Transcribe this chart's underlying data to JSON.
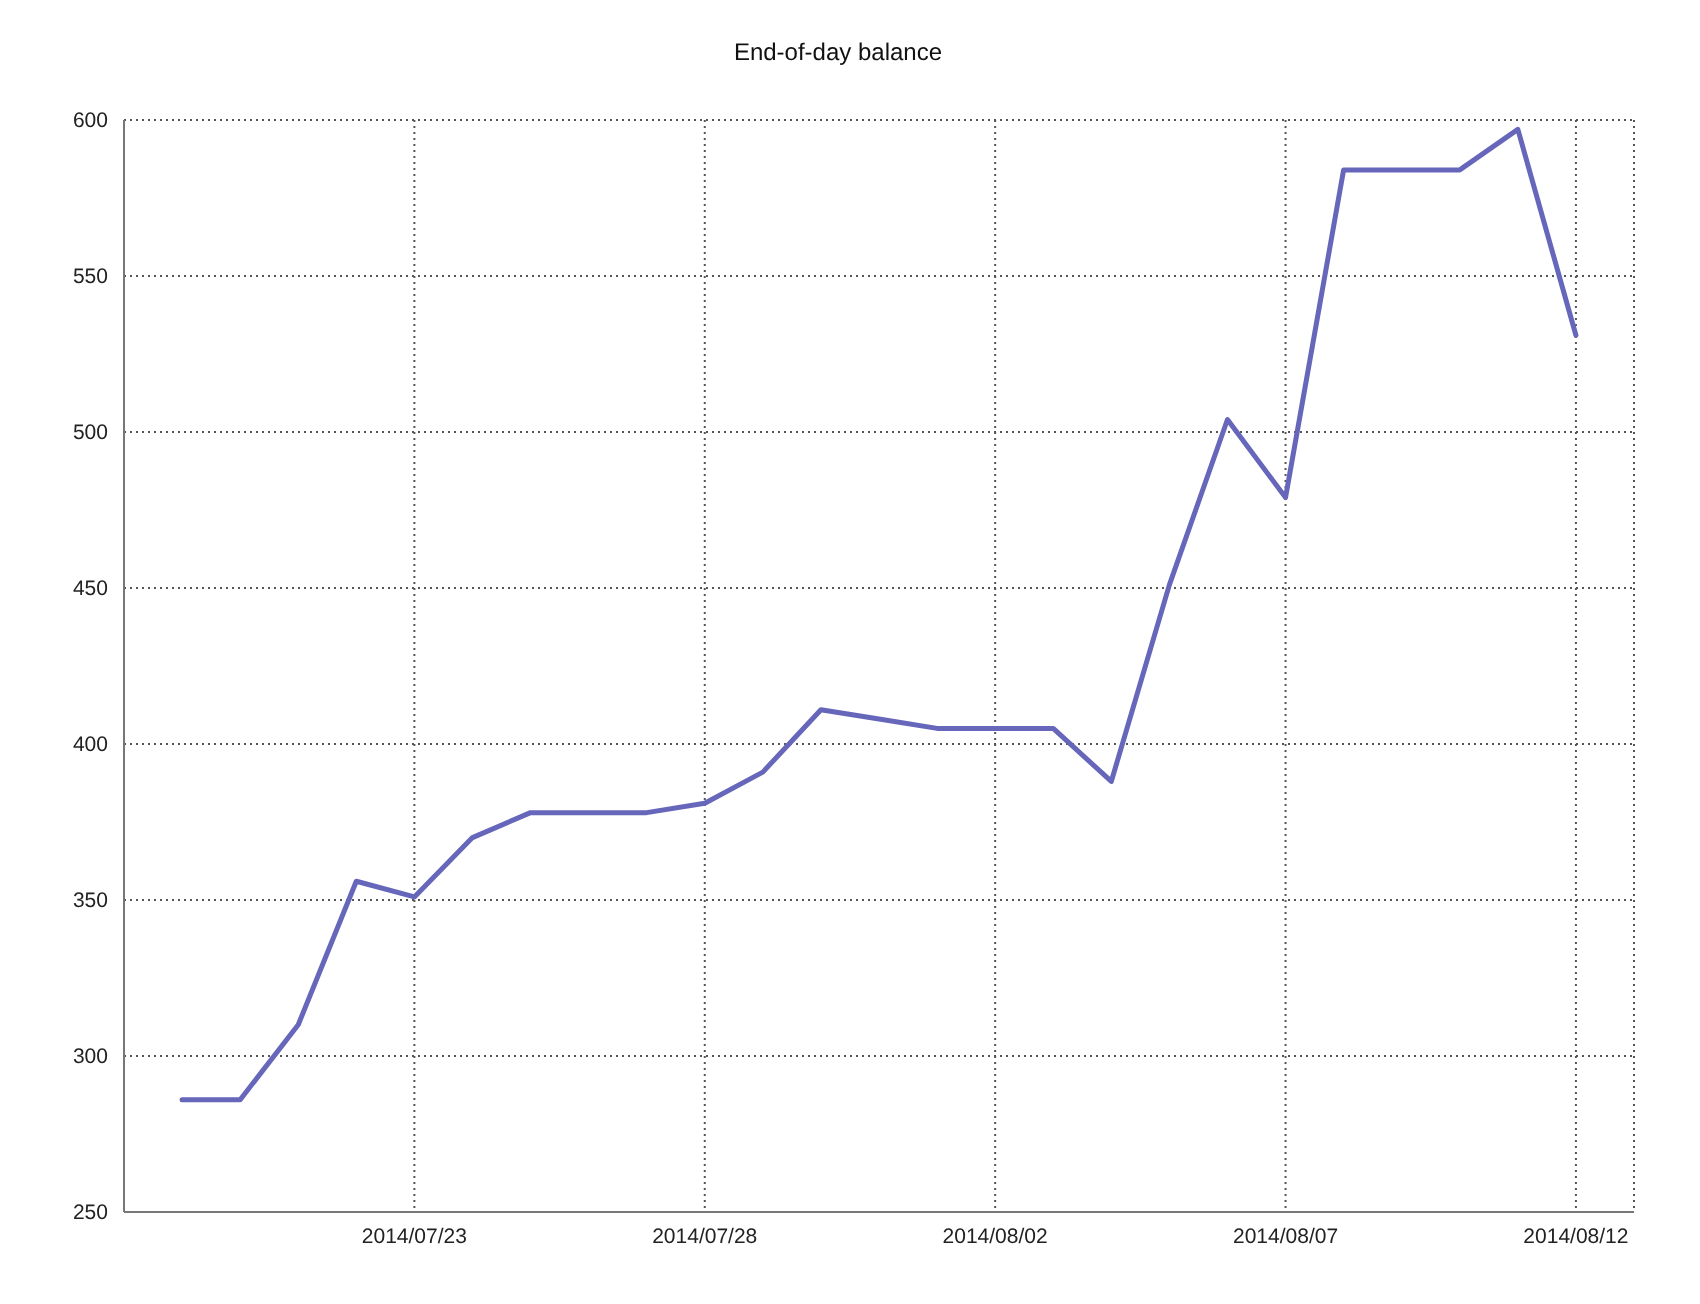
{
  "chart_data": {
    "type": "line",
    "title": "End-of-day balance",
    "x": [
      "2014-07-19",
      "2014-07-20",
      "2014-07-21",
      "2014-07-22",
      "2014-07-23",
      "2014-07-24",
      "2014-07-25",
      "2014-07-26",
      "2014-07-27",
      "2014-07-28",
      "2014-07-29",
      "2014-07-30",
      "2014-07-31",
      "2014-08-01",
      "2014-08-02",
      "2014-08-03",
      "2014-08-04",
      "2014-08-05",
      "2014-08-06",
      "2014-08-07",
      "2014-08-08",
      "2014-08-09",
      "2014-08-10",
      "2014-08-11",
      "2014-08-12"
    ],
    "values": [
      286,
      286,
      310,
      356,
      351,
      370,
      378,
      378,
      378,
      381,
      391,
      411,
      408,
      405,
      405,
      405,
      388,
      451,
      504,
      479,
      584,
      584,
      584,
      597,
      531
    ],
    "color": "#6666bb",
    "xlim": [
      "2014-07-18",
      "2014-08-13"
    ],
    "xticks": [
      {
        "value": "2014-07-23",
        "label": "2014/07/23"
      },
      {
        "value": "2014-07-28",
        "label": "2014/07/28"
      },
      {
        "value": "2014-08-02",
        "label": "2014/08/02"
      },
      {
        "value": "2014-08-07",
        "label": "2014/08/07"
      },
      {
        "value": "2014-08-12",
        "label": "2014/08/12"
      }
    ],
    "ylim": [
      250,
      600
    ],
    "yticks": [
      250,
      300,
      350,
      400,
      450,
      500,
      550,
      600
    ],
    "grid": true
  }
}
